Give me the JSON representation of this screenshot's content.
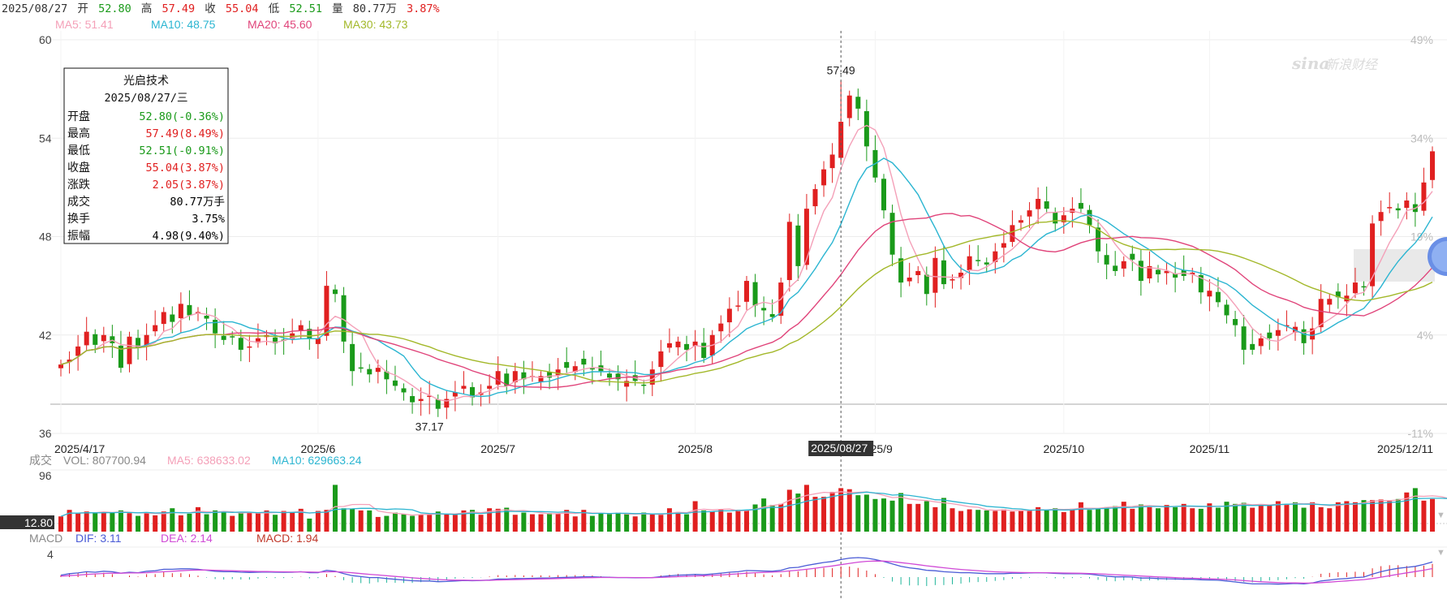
{
  "header": {
    "date": "2025/08/27",
    "open_label": "开",
    "open": "52.80",
    "high_label": "高",
    "high": "57.49",
    "close_label": "收",
    "close": "55.04",
    "low_label": "低",
    "low": "52.51",
    "vol_label": "量",
    "vol": "80.77万",
    "change_pct": "3.87%"
  },
  "ma_legend": [
    {
      "text": "MA5: 51.41",
      "color": "#f4a0b8"
    },
    {
      "text": "MA10: 48.75",
      "color": "#2bb5d1"
    },
    {
      "text": "MA20: 45.60",
      "color": "#e0447a"
    },
    {
      "text": "MA30: 43.73",
      "color": "#a3b82a"
    }
  ],
  "tooltip": {
    "name": "光启技术",
    "date": "2025/08/27/三",
    "rows": [
      {
        "label": "开盘",
        "value": "52.80(-0.36%)",
        "color": "#1a9a1a"
      },
      {
        "label": "最高",
        "value": "57.49(8.49%)",
        "color": "#e02020"
      },
      {
        "label": "最低",
        "value": "52.51(-0.91%)",
        "color": "#1a9a1a"
      },
      {
        "label": "收盘",
        "value": "55.04(3.87%)",
        "color": "#e02020"
      },
      {
        "label": "涨跌",
        "value": "2.05(3.87%)",
        "color": "#e02020"
      },
      {
        "label": "成交",
        "value": "80.77万手",
        "color": "#000000"
      },
      {
        "label": "换手",
        "value": "3.75%",
        "color": "#000000"
      },
      {
        "label": "振幅",
        "value": "4.98(9.40%)",
        "color": "#000000"
      }
    ]
  },
  "watermark": "新浪财经",
  "watermark_brand": "sina",
  "volume_legend": {
    "title": "成交",
    "vol": "VOL: 807700.94",
    "ma5": "MA5: 638633.02",
    "ma10": "MA10: 629663.24"
  },
  "volume_axis_value": "12.80",
  "macd_legend": {
    "title": "MACD",
    "dif": "DIF: 3.11",
    "dea": "DEA: 2.14",
    "macd": "MACD: 1.94"
  },
  "colors": {
    "up": "#e02020",
    "down": "#1a9a1a",
    "ma5": "#f4a0b8",
    "ma10": "#2bb5d1",
    "ma20": "#e0447a",
    "ma30": "#a3b82a",
    "dif": "#4a5bd6",
    "dea": "#d04ad6",
    "grid": "#ececec"
  },
  "chart_data": {
    "type": "candlestick",
    "ylim": [
      36,
      60
    ],
    "y_ticks": [
      60,
      54,
      48,
      42,
      36
    ],
    "pct_ticks": [
      "49%",
      "34%",
      "19%",
      "4%",
      "-11%"
    ],
    "x_ticks": [
      {
        "i": 0,
        "label": "2025/4/17"
      },
      {
        "i": 30,
        "label": "2025/6"
      },
      {
        "i": 51,
        "label": "2025/7"
      },
      {
        "i": 74,
        "label": "2025/8"
      },
      {
        "i": 95,
        "label": "2025/9"
      },
      {
        "i": 117,
        "label": "2025/10"
      },
      {
        "i": 134,
        "label": "2025/11"
      },
      {
        "i": 162,
        "label": "2025/12/11"
      }
    ],
    "crosshair": {
      "i": 91,
      "label": "2025/08/27"
    },
    "annotations": [
      {
        "i": 91,
        "value": 57.49,
        "text": "57.49",
        "position": "above"
      },
      {
        "i": 43,
        "value": 37.17,
        "text": "37.17",
        "position": "below"
      }
    ],
    "closes": [
      40.2,
      40.5,
      41.3,
      42.2,
      41.4,
      42.0,
      41.5,
      40.0,
      41.9,
      41.2,
      42.0,
      42.6,
      43.4,
      42.8,
      43.9,
      43.2,
      43.4,
      43.0,
      42.1,
      41.7,
      41.9,
      41.1,
      41.3,
      41.8,
      42.0,
      41.5,
      41.7,
      42.1,
      42.6,
      41.8,
      41.8,
      45.0,
      44.5,
      41.6,
      39.8,
      40.0,
      39.6,
      40.0,
      39.3,
      38.9,
      38.5,
      37.9,
      38.1,
      38.3,
      37.5,
      38.1,
      38.5,
      38.9,
      38.2,
      38.5,
      38.9,
      39.8,
      38.9,
      39.8,
      39.3,
      39.5,
      39.5,
      39.4,
      39.9,
      40.0,
      40.1,
      40.2,
      39.9,
      39.8,
      39.4,
      39.3,
      39.2,
      39.2,
      38.9,
      39.9,
      41.0,
      41.5,
      41.6,
      41.1,
      41.6,
      40.6,
      42.0,
      42.7,
      43.6,
      43.8,
      45.3,
      43.8,
      43.5,
      43.1,
      45.2,
      48.9,
      46.2,
      49.7,
      50.9,
      52.1,
      53.0,
      55.0,
      56.6,
      55.8,
      53.5,
      51.6,
      49.6,
      46.9,
      45.2,
      45.5,
      45.9,
      44.5,
      46.7,
      45.1,
      45.4,
      45.8,
      46.8,
      46.5,
      46.3,
      47.1,
      47.6,
      48.7,
      49.0,
      49.6,
      50.3,
      49.7,
      48.8,
      49.3,
      49.7,
      49.7,
      48.7,
      47.1,
      46.3,
      45.9,
      46.5,
      46.6,
      45.3,
      46.2,
      45.7,
      45.9,
      45.5,
      45.6,
      45.8,
      44.6,
      44.7,
      44.0,
      43.2,
      42.6,
      41.1,
      41.1,
      41.8,
      41.8,
      42.3,
      42.6,
      42.5,
      41.5,
      42.4,
      44.2,
      44.2,
      44.3,
      44.4,
      45.2,
      44.9,
      48.8,
      49.5,
      49.8,
      49.6,
      50.2,
      49.5,
      51.3,
      53.2
    ],
    "volume": {
      "max_label": "96",
      "values": [
        28,
        40,
        34,
        37,
        34,
        36,
        35,
        39,
        34,
        29,
        35,
        30,
        37,
        43,
        30,
        33,
        45,
        32,
        39,
        36,
        29,
        35,
        36,
        34,
        39,
        31,
        38,
        36,
        42,
        24,
        38,
        40,
        86,
        43,
        42,
        39,
        39,
        27,
        29,
        35,
        32,
        29,
        32,
        31,
        37,
        33,
        31,
        39,
        40,
        31,
        43,
        42,
        44,
        31,
        35,
        32,
        32,
        34,
        33,
        40,
        28,
        40,
        29,
        34,
        33,
        35,
        32,
        28,
        35,
        32,
        31,
        43,
        36,
        32,
        56,
        39,
        37,
        41,
        35,
        40,
        40,
        50,
        61,
        49,
        51,
        77,
        70,
        86,
        64,
        64,
        73,
        80,
        78,
        67,
        68,
        60,
        61,
        57,
        71,
        51,
        51,
        56,
        45,
        62,
        43,
        38,
        41,
        40,
        39,
        38,
        41,
        37,
        38,
        40,
        45,
        40,
        43,
        36,
        42,
        54,
        40,
        42,
        45,
        47,
        55,
        42,
        50,
        45,
        43,
        49,
        45,
        51,
        43,
        42,
        52,
        44,
        55,
        51,
        53,
        44,
        48,
        50,
        56,
        51,
        54,
        44,
        54,
        45,
        43,
        54,
        56,
        54,
        58,
        58,
        59,
        56,
        60,
        72,
        80,
        57,
        60,
        53,
        53
      ]
    },
    "macd": {
      "axis_label": "4",
      "dif": [
        0.4,
        0.7,
        0.85,
        1.1,
        1.0,
        1.2,
        1.1,
        0.8,
        1.0,
        0.9,
        1.2,
        1.3,
        1.6,
        1.6,
        1.7,
        1.7,
        1.6,
        1.4,
        1.2,
        1.1,
        1.1,
        1.0,
        0.95,
        1.0,
        1.05,
        1.0,
        0.98,
        1.0,
        1.1,
        0.9,
        0.9,
        1.4,
        1.2,
        0.7,
        0.3,
        0.1,
        -0.1,
        -0.1,
        -0.3,
        -0.45,
        -0.6,
        -0.75,
        -0.8,
        -0.8,
        -0.95,
        -0.9,
        -0.8,
        -0.7,
        -0.75,
        -0.7,
        -0.6,
        -0.4,
        -0.4,
        -0.3,
        -0.3,
        -0.25,
        -0.2,
        -0.2,
        -0.1,
        -0.05,
        0.0,
        0.05,
        0.05,
        0.0,
        -0.05,
        -0.1,
        -0.1,
        -0.15,
        -0.15,
        -0.1,
        0.1,
        0.25,
        0.4,
        0.45,
        0.55,
        0.5,
        0.65,
        0.8,
        1.0,
        1.1,
        1.35,
        1.3,
        1.25,
        1.2,
        1.4,
        1.9,
        2.0,
        2.4,
        2.7,
        3.0,
        3.2,
        3.6,
        3.9,
        4.0,
        3.9,
        3.6,
        3.2,
        2.7,
        2.2,
        1.9,
        1.7,
        1.4,
        1.3,
        1.1,
        1.0,
        0.9,
        0.9,
        0.8,
        0.7,
        0.7,
        0.7,
        0.8,
        0.8,
        0.85,
        0.9,
        0.85,
        0.75,
        0.7,
        0.7,
        0.7,
        0.6,
        0.4,
        0.2,
        0.05,
        0.05,
        0.0,
        -0.2,
        -0.2,
        -0.3,
        -0.35,
        -0.4,
        -0.45,
        -0.45,
        -0.55,
        -0.6,
        -0.65,
        -0.8,
        -1.0,
        -1.2,
        -1.4,
        -1.4,
        -1.4,
        -1.45,
        -1.4,
        -1.3,
        -1.4,
        -1.2,
        -0.8,
        -0.6,
        -0.4,
        -0.3,
        -0.1,
        0.0,
        0.6,
        1.1,
        1.5,
        1.8,
        2.0,
        2.2,
        2.6,
        3.1
      ],
      "dea": [
        0.2,
        0.3,
        0.4,
        0.55,
        0.65,
        0.75,
        0.8,
        0.8,
        0.85,
        0.85,
        0.9,
        1.0,
        1.1,
        1.2,
        1.3,
        1.4,
        1.45,
        1.45,
        1.4,
        1.35,
        1.3,
        1.25,
        1.2,
        1.15,
        1.13,
        1.1,
        1.08,
        1.06,
        1.07,
        1.03,
        1.0,
        1.08,
        1.1,
        1.02,
        0.88,
        0.72,
        0.56,
        0.43,
        0.28,
        0.14,
        0.0,
        -0.15,
        -0.28,
        -0.38,
        -0.5,
        -0.58,
        -0.63,
        -0.64,
        -0.66,
        -0.67,
        -0.66,
        -0.6,
        -0.56,
        -0.51,
        -0.47,
        -0.43,
        -0.38,
        -0.35,
        -0.3,
        -0.25,
        -0.2,
        -0.15,
        -0.11,
        -0.09,
        -0.08,
        -0.08,
        -0.08,
        -0.1,
        -0.11,
        -0.11,
        -0.07,
        0.0,
        0.08,
        0.15,
        0.23,
        0.28,
        0.35,
        0.44,
        0.55,
        0.66,
        0.8,
        0.9,
        0.97,
        1.02,
        1.1,
        1.26,
        1.41,
        1.6,
        1.82,
        2.06,
        2.29,
        2.55,
        2.82,
        3.06,
        3.23,
        3.3,
        3.28,
        3.16,
        2.97,
        2.76,
        2.55,
        2.32,
        2.12,
        1.92,
        1.74,
        1.57,
        1.44,
        1.31,
        1.19,
        1.09,
        1.01,
        0.97,
        0.94,
        0.92,
        0.91,
        0.9,
        0.87,
        0.83,
        0.8,
        0.78,
        0.74,
        0.68,
        0.59,
        0.48,
        0.39,
        0.31,
        0.21,
        0.13,
        0.04,
        -0.04,
        -0.11,
        -0.18,
        -0.23,
        -0.3,
        -0.36,
        -0.42,
        -0.49,
        -0.59,
        -0.71,
        -0.85,
        -0.96,
        -1.05,
        -1.13,
        -1.18,
        -1.2,
        -1.24,
        -1.23,
        -1.14,
        -1.03,
        -0.9,
        -0.78,
        -0.65,
        -0.52,
        -0.3,
        -0.02,
        0.28,
        0.58,
        0.86,
        1.13,
        1.42,
        1.75
      ]
    }
  }
}
